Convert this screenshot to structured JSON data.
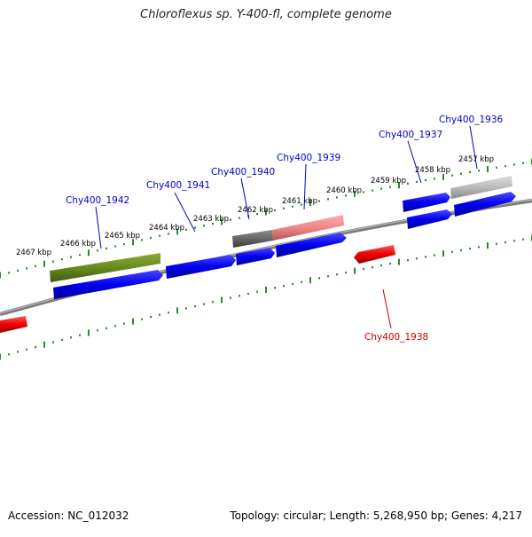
{
  "title": "Chloroflexus sp. Y-400-fl, complete genome",
  "footer": {
    "accession": "Accession: NC_012032",
    "summary": "Topology: circular; Length: 5,268,950 bp; Genes: 4,217"
  },
  "colors": {
    "ruler": "#1a7a1a",
    "backbone": "#7a7a7a",
    "cds_forward": "#0000ee",
    "cds_reverse": "#ee0000",
    "label_forward": "#0000cc",
    "label_reverse": "#cc0000",
    "gene_olive": "#6a8a1f",
    "gene_pink": "#ee8888",
    "gene_dark_gray": "#666666",
    "gene_light_gray": "#bbbbbb"
  },
  "ruler_ticks": [
    "2467 kbp",
    "2466 kbp",
    "2465 kbp",
    "2464 kbp",
    "2463 kbp",
    "2462 kbp",
    "2461 kbp",
    "2460 kbp",
    "2459 kbp",
    "2458 kbp",
    "2457 kbp"
  ],
  "gene_labels": [
    {
      "name": "Chy400_1942",
      "strand": "forward"
    },
    {
      "name": "Chy400_1941",
      "strand": "forward"
    },
    {
      "name": "Chy400_1940",
      "strand": "forward"
    },
    {
      "name": "Chy400_1939",
      "strand": "forward"
    },
    {
      "name": "Chy400_1937",
      "strand": "forward"
    },
    {
      "name": "Chy400_1936",
      "strand": "forward"
    },
    {
      "name": "Chy400_1938",
      "strand": "reverse"
    }
  ]
}
